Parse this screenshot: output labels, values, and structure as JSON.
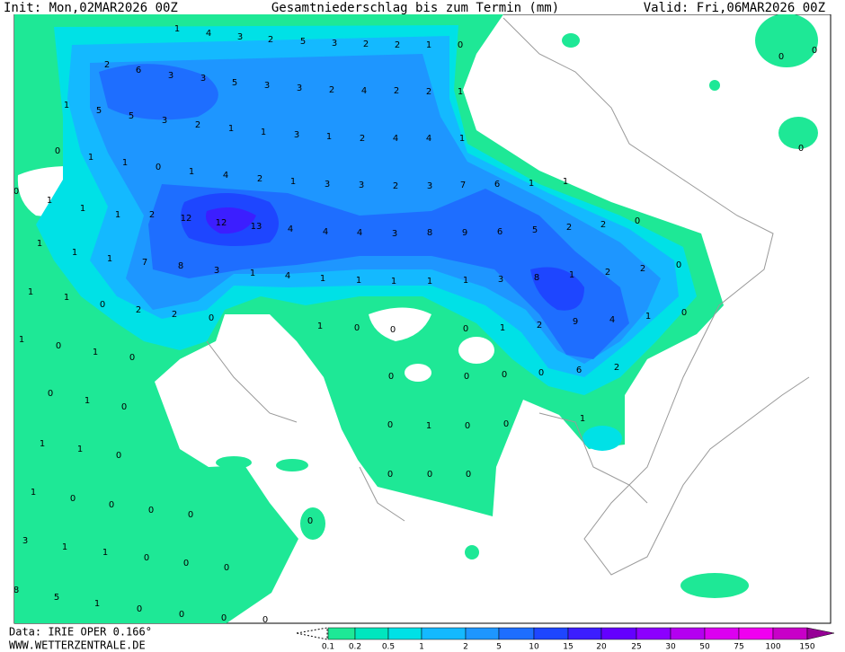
{
  "header": {
    "init": "Init: Mon,02MAR2026 00Z",
    "title": "Gesamtniederschlag bis zum Termin (mm)",
    "valid": "Valid: Fri,06MAR2026 00Z"
  },
  "footer": {
    "data": "Data: IRIE OPER 0.166°",
    "site": "WWW.WETTERZENTRALE.DE"
  },
  "legend": {
    "levels": [
      "0.1",
      "0.2",
      "0.5",
      "1",
      "2",
      "5",
      "10",
      "15",
      "20",
      "25",
      "30",
      "50",
      "75",
      "100",
      "150"
    ],
    "colors": [
      "#1ee896",
      "#00e6be",
      "#00e1e6",
      "#14b9ff",
      "#1e96ff",
      "#1e6eff",
      "#1e46ff",
      "#3c1eff",
      "#6400ff",
      "#8c00ff",
      "#b400f0",
      "#dc00f0",
      "#f000f0",
      "#c800c8",
      "#960096"
    ]
  },
  "map_values": [
    1,
    4,
    3,
    2,
    5,
    3,
    2,
    2,
    1,
    0,
    2,
    6,
    3,
    3,
    5,
    3,
    3,
    2,
    4,
    2,
    2,
    1,
    1,
    5,
    5,
    3,
    2,
    1,
    1,
    3,
    1,
    2,
    4,
    4,
    1,
    0,
    1,
    1,
    0,
    1,
    4,
    2,
    1,
    3,
    3,
    2,
    3,
    7,
    6,
    1,
    1,
    0,
    1,
    1,
    1,
    2,
    12,
    12,
    13,
    4,
    4,
    4,
    3,
    8,
    9,
    6,
    5,
    2,
    2,
    0,
    1,
    1,
    1,
    7,
    8,
    3,
    1,
    4,
    1,
    1,
    1,
    1,
    1,
    3,
    8,
    1,
    2,
    2,
    0,
    1,
    1,
    0,
    2,
    2,
    0,
    1,
    0,
    0,
    0,
    1,
    2,
    9,
    4,
    1,
    0,
    1,
    0,
    1,
    0,
    0,
    0,
    0,
    0,
    6,
    2,
    0,
    1,
    0,
    1,
    1,
    1,
    0,
    0,
    1,
    0,
    0,
    1,
    0,
    0,
    0,
    0,
    0,
    0,
    0,
    0,
    3,
    1,
    1,
    0,
    0,
    0,
    8,
    5,
    1,
    0,
    0,
    0,
    0,
    0,
    0,
    0
  ]
}
